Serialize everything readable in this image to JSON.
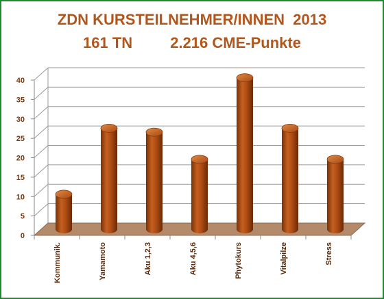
{
  "chart_data": {
    "type": "bar",
    "title": "ZDN KURSTEILNEHMER/INNEN  2013",
    "subtitle": "161 TN         2.216 CME-Punkte",
    "categories": [
      "Kommunik.",
      "Yamamoto",
      "Aku 1,2,3",
      "Aku 4,5,6",
      "Phytokurs",
      "Vitalpilze",
      "Stress"
    ],
    "values": [
      9,
      26,
      25,
      18,
      39,
      26,
      18
    ],
    "ylim": [
      0,
      40
    ],
    "yticks": [
      "0",
      "5",
      "10",
      "15",
      "20",
      "25",
      "30",
      "35",
      "40"
    ],
    "grid": true,
    "bar_color": "#b5531a",
    "floor_color": "#b38a6a",
    "accent_color": "#b3561c",
    "border_color": "#1e8a2c"
  }
}
